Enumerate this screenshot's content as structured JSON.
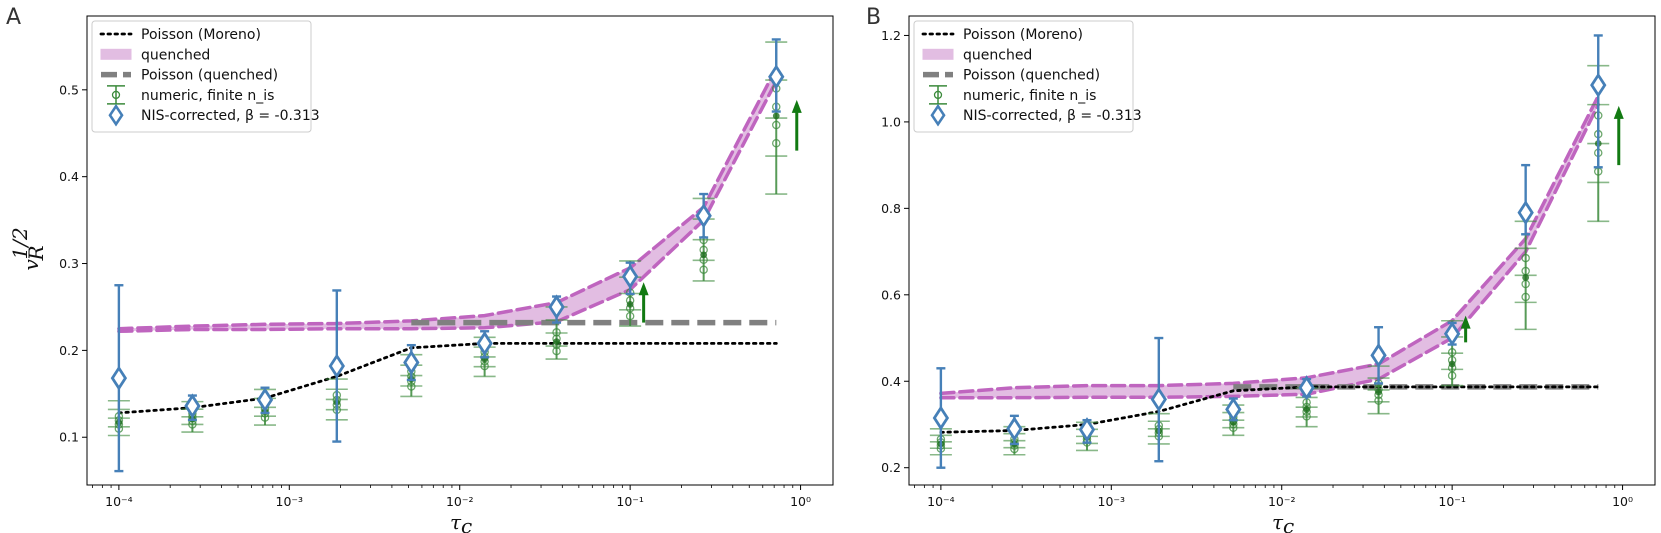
{
  "chart_data": [
    {
      "type": "line",
      "panel_label": "A",
      "xscale": "log",
      "xlabel": "τc",
      "ylabel": "v_R^{1/2}",
      "xlim": [
        6.5e-05,
        1.55
      ],
      "ylim": [
        0.045,
        0.585
      ],
      "yticks": [
        0.1,
        0.2,
        0.3,
        0.4,
        0.5
      ],
      "ytick_labels": [
        "0.1",
        "0.2",
        "0.3",
        "0.4",
        "0.5"
      ],
      "xticks": [
        0.0001,
        0.001,
        0.01,
        0.1,
        1
      ],
      "xtick_labels": [
        "10⁻⁴",
        "10⁻³",
        "10⁻²",
        "10⁻¹",
        "10⁰"
      ],
      "legend": {
        "position": "top-left",
        "entries": [
          "Poisson (Moreno)",
          "quenched",
          "Poisson (quenched)",
          "numeric, finite n_is",
          "NIS-corrected, β = -0.313"
        ]
      },
      "series": [
        {
          "name": "Poisson (Moreno)",
          "style": "dotted",
          "x": [
            0.0001,
            0.00027,
            0.00072,
            0.0019,
            0.0052,
            0.014,
            0.037,
            0.1,
            0.27,
            0.72
          ],
          "y": [
            0.128,
            0.134,
            0.145,
            0.17,
            0.203,
            0.208,
            0.208,
            0.208,
            0.208,
            0.208
          ]
        },
        {
          "name": "quenched",
          "style": "band",
          "x": [
            0.0001,
            0.00027,
            0.00072,
            0.0019,
            0.0052,
            0.014,
            0.037,
            0.1,
            0.27,
            0.72
          ],
          "lower": [
            0.222,
            0.224,
            0.224,
            0.225,
            0.225,
            0.226,
            0.233,
            0.27,
            0.35,
            0.51
          ],
          "upper": [
            0.225,
            0.228,
            0.23,
            0.231,
            0.234,
            0.24,
            0.255,
            0.295,
            0.365,
            0.525
          ]
        },
        {
          "name": "Poisson (quenched)",
          "style": "dashed",
          "x": [
            0.0052,
            0.72
          ],
          "y": [
            0.232,
            0.232
          ]
        },
        {
          "name": "numeric, finite n_is",
          "style": "errorbar",
          "x": [
            0.0001,
            0.00027,
            0.00072,
            0.0019,
            0.0052,
            0.014,
            0.037,
            0.1,
            0.27,
            0.72
          ],
          "y": [
            0.117,
            0.121,
            0.13,
            0.14,
            0.167,
            0.19,
            0.21,
            0.253,
            0.31,
            0.47
          ],
          "err_low": [
            0.015,
            0.015,
            0.016,
            0.02,
            0.02,
            0.02,
            0.02,
            0.025,
            0.03,
            0.09
          ],
          "err_high": [
            0.025,
            0.02,
            0.025,
            0.027,
            0.028,
            0.025,
            0.04,
            0.05,
            0.065,
            0.085
          ]
        },
        {
          "name": "NIS-corrected, β = -0.313",
          "style": "diamond",
          "x": [
            0.0001,
            0.00027,
            0.00072,
            0.0019,
            0.0052,
            0.014,
            0.037,
            0.1,
            0.27,
            0.72
          ],
          "y": [
            0.168,
            0.136,
            0.143,
            0.182,
            0.186,
            0.208,
            0.25,
            0.285,
            0.355,
            0.515
          ],
          "err_low": [
            0.107,
            0.016,
            0.015,
            0.087,
            0.02,
            0.016,
            0.018,
            0.02,
            0.025,
            0.04
          ],
          "err_high": [
            0.107,
            0.012,
            0.014,
            0.087,
            0.02,
            0.014,
            0.012,
            0.016,
            0.025,
            0.043
          ]
        }
      ],
      "arrows": [
        {
          "x": 0.12,
          "y_from": 0.232,
          "y_to": 0.275
        },
        {
          "x": 0.95,
          "y_from": 0.43,
          "y_to": 0.485
        }
      ]
    },
    {
      "type": "line",
      "panel_label": "B",
      "xscale": "log",
      "xlabel": "τc",
      "ylabel": "",
      "xlim": [
        6.5e-05,
        1.55
      ],
      "ylim": [
        0.16,
        1.245
      ],
      "yticks": [
        0.2,
        0.4,
        0.6,
        0.8,
        1.0,
        1.2
      ],
      "ytick_labels": [
        "0.2",
        "0.4",
        "0.6",
        "0.8",
        "1.0",
        "1.2"
      ],
      "xticks": [
        0.0001,
        0.001,
        0.01,
        0.1,
        1
      ],
      "xtick_labels": [
        "10⁻⁴",
        "10⁻³",
        "10⁻²",
        "10⁻¹",
        "10⁰"
      ],
      "legend": {
        "position": "top-left",
        "entries": [
          "Poisson (Moreno)",
          "quenched",
          "Poisson (quenched)",
          "numeric, finite n_is",
          "NIS-corrected, β = -0.313"
        ]
      },
      "series": [
        {
          "name": "Poisson (Moreno)",
          "style": "dotted",
          "x": [
            0.0001,
            0.00027,
            0.00072,
            0.0019,
            0.0052,
            0.014,
            0.037,
            0.1,
            0.27,
            0.72
          ],
          "y": [
            0.282,
            0.286,
            0.3,
            0.33,
            0.378,
            0.387,
            0.387,
            0.387,
            0.387,
            0.387
          ]
        },
        {
          "name": "quenched",
          "style": "band",
          "x": [
            0.0001,
            0.00027,
            0.00072,
            0.0019,
            0.0052,
            0.014,
            0.037,
            0.1,
            0.27,
            0.72
          ],
          "lower": [
            0.362,
            0.362,
            0.363,
            0.363,
            0.365,
            0.37,
            0.405,
            0.5,
            0.7,
            1.04
          ],
          "upper": [
            0.372,
            0.385,
            0.39,
            0.39,
            0.395,
            0.408,
            0.44,
            0.54,
            0.73,
            1.06
          ]
        },
        {
          "name": "Poisson (quenched)",
          "style": "dashed",
          "x": [
            0.0052,
            0.72
          ],
          "y": [
            0.387,
            0.387
          ]
        },
        {
          "name": "numeric, finite n_is",
          "style": "errorbar",
          "x": [
            0.0001,
            0.00027,
            0.00072,
            0.0019,
            0.0052,
            0.014,
            0.037,
            0.1,
            0.27,
            0.72
          ],
          "y": [
            0.255,
            0.255,
            0.27,
            0.285,
            0.305,
            0.335,
            0.375,
            0.44,
            0.64,
            0.95
          ],
          "err_low": [
            0.025,
            0.025,
            0.03,
            0.03,
            0.03,
            0.04,
            0.05,
            0.05,
            0.12,
            0.18
          ],
          "err_high": [
            0.035,
            0.04,
            0.035,
            0.04,
            0.04,
            0.05,
            0.06,
            0.1,
            0.13,
            0.18
          ]
        },
        {
          "name": "NIS-corrected, β = -0.313",
          "style": "diamond",
          "x": [
            0.0001,
            0.00027,
            0.00072,
            0.0019,
            0.0052,
            0.014,
            0.037,
            0.1,
            0.27,
            0.72
          ],
          "y": [
            0.315,
            0.29,
            0.288,
            0.358,
            0.335,
            0.385,
            0.46,
            0.51,
            0.79,
            1.085
          ],
          "err_low": [
            0.115,
            0.035,
            0.03,
            0.143,
            0.025,
            0.02,
            0.065,
            0.025,
            0.05,
            0.19
          ],
          "err_high": [
            0.115,
            0.03,
            0.022,
            0.142,
            0.025,
            0.02,
            0.065,
            0.025,
            0.11,
            0.115
          ]
        }
      ],
      "arrows": [
        {
          "x": 0.12,
          "y_from": 0.49,
          "y_to": 0.545
        },
        {
          "x": 0.95,
          "y_from": 0.9,
          "y_to": 1.03
        }
      ]
    }
  ]
}
